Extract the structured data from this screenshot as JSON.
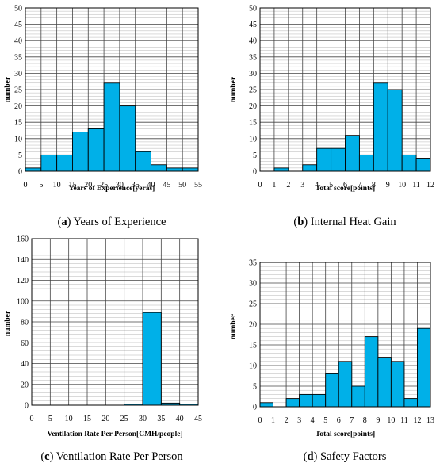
{
  "chart_data": [
    {
      "panel": "a",
      "type": "bar",
      "caption_letter": "a",
      "caption_text": "Years of Experience",
      "xlabel": "Years of Experience[yeras]",
      "ylabel": "number",
      "xlim": [
        0,
        55
      ],
      "ylim": [
        0,
        50
      ],
      "xticks": [
        0,
        5,
        10,
        15,
        20,
        25,
        30,
        35,
        40,
        45,
        50,
        55
      ],
      "yticks": [
        0,
        5,
        10,
        15,
        20,
        25,
        30,
        35,
        40,
        45,
        50
      ],
      "bin_edges": [
        0,
        5,
        10,
        15,
        20,
        25,
        30,
        35,
        40,
        45,
        50,
        55
      ],
      "values": [
        1,
        5,
        5,
        12,
        13,
        27,
        20,
        6,
        2,
        1,
        1
      ],
      "bar_color": "#00b0e8",
      "grid": true
    },
    {
      "panel": "b",
      "type": "bar",
      "caption_letter": "b",
      "caption_text": "Internal Heat Gain",
      "xlabel": "Total score[points]",
      "ylabel": "number",
      "xlim": [
        0,
        12
      ],
      "ylim": [
        0,
        50
      ],
      "xticks": [
        0,
        1,
        2,
        3,
        4,
        5,
        6,
        7,
        8,
        9,
        10,
        11,
        12
      ],
      "yticks": [
        0,
        5,
        10,
        15,
        20,
        25,
        30,
        35,
        40,
        45,
        50
      ],
      "bin_edges": [
        0,
        1,
        2,
        3,
        4,
        5,
        6,
        7,
        8,
        9,
        10,
        11,
        12
      ],
      "values": [
        0,
        1,
        0,
        2,
        7,
        7,
        11,
        5,
        27,
        25,
        5,
        4
      ],
      "bar_color": "#00b0e8",
      "grid": true
    },
    {
      "panel": "c",
      "type": "bar",
      "caption_letter": "c",
      "caption_text": "Ventilation Rate Per Person",
      "xlabel": "Ventilation Rate Per Person[CMH/people]",
      "ylabel": "number",
      "xlim": [
        0,
        45
      ],
      "ylim": [
        0,
        160
      ],
      "xticks": [
        0,
        5,
        10,
        15,
        20,
        25,
        30,
        35,
        40,
        45
      ],
      "yticks": [
        0,
        20,
        40,
        60,
        80,
        100,
        120,
        140,
        160
      ],
      "bin_edges": [
        0,
        5,
        10,
        15,
        20,
        25,
        30,
        35,
        40,
        45
      ],
      "values": [
        0,
        0,
        0,
        0,
        0,
        1,
        89,
        2,
        1
      ],
      "bar_color": "#00b0e8",
      "grid": true
    },
    {
      "panel": "d",
      "type": "bar",
      "caption_letter": "d",
      "caption_text": "Safety Factors",
      "xlabel": "Total score[points]",
      "ylabel": "number",
      "xlim": [
        0,
        13
      ],
      "ylim": [
        0,
        35
      ],
      "xticks": [
        0,
        1,
        2,
        3,
        4,
        5,
        6,
        7,
        8,
        9,
        10,
        11,
        12,
        13
      ],
      "yticks": [
        0,
        5,
        10,
        15,
        20,
        25,
        30,
        35
      ],
      "bin_edges": [
        0,
        1,
        2,
        3,
        4,
        5,
        6,
        7,
        8,
        9,
        10,
        11,
        12,
        13
      ],
      "values": [
        1,
        0,
        2,
        3,
        3,
        8,
        11,
        5,
        17,
        12,
        11,
        2,
        19
      ],
      "bar_color": "#00b0e8",
      "grid": true
    }
  ]
}
